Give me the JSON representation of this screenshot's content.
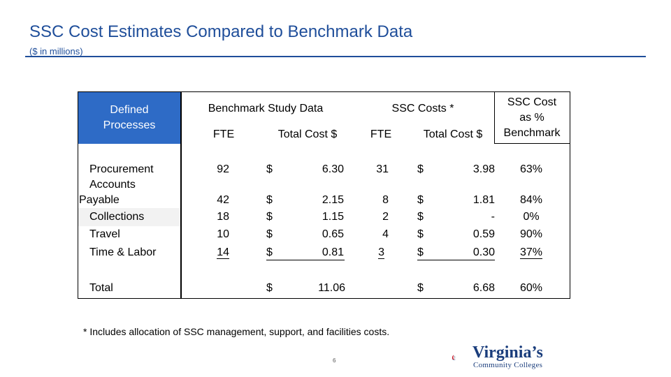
{
  "title": "SSC Cost Estimates Compared to Benchmark Data",
  "subtitle": "($ in millions)",
  "table": {
    "header_defined": "Defined Processes",
    "header_benchmark": "Benchmark Study Data",
    "header_ssc": "SSC Costs *",
    "header_pct_line1": "SSC Cost",
    "header_pct_line2": "as %",
    "header_pct_line3": "Benchmark",
    "sub_fte1": "FTE",
    "sub_total1": "Total Cost $",
    "sub_fte2": "FTE",
    "sub_total2": "Total Cost $",
    "rows": [
      {
        "process": "Procurement",
        "b_fte": "92",
        "b_cur": "$",
        "b_cost": "6.30",
        "s_fte": "31",
        "s_cur": "$",
        "s_cost": "3.98",
        "pct": "63%"
      },
      {
        "process_line1": "Accounts",
        "process_line2": "Payable",
        "b_fte": "42",
        "b_cur": "$",
        "b_cost": "2.15",
        "s_fte": "8",
        "s_cur": "$",
        "s_cost": "1.81",
        "pct": "84%"
      },
      {
        "process": "Collections",
        "b_fte": "18",
        "b_cur": "$",
        "b_cost": "1.15",
        "s_fte": "2",
        "s_cur": "$",
        "s_cost": "-",
        "pct": "0%"
      },
      {
        "process": "Travel",
        "b_fte": "10",
        "b_cur": "$",
        "b_cost": "0.65",
        "s_fte": "4",
        "s_cur": "$",
        "s_cost": "0.59",
        "pct": "90%"
      },
      {
        "process": "Time & Labor",
        "b_fte": "14",
        "b_cur": "$",
        "b_cost": "0.81",
        "s_fte": "3",
        "s_cur": "$",
        "s_cost": "0.30",
        "pct": "37%"
      }
    ],
    "total": {
      "label": "Total",
      "b_cur": "$",
      "b_cost": "11.06",
      "s_cur": "$",
      "s_cost": "6.68",
      "pct": "60%"
    }
  },
  "footnote": "* Includes allocation of SSC management, support, and facilities costs.",
  "page_number": "6",
  "logo": {
    "name": "Virginia’s",
    "tagline": "Community Colleges"
  },
  "colors": {
    "title": "#1f4e9a",
    "header_fill": "#2e6bc6"
  }
}
